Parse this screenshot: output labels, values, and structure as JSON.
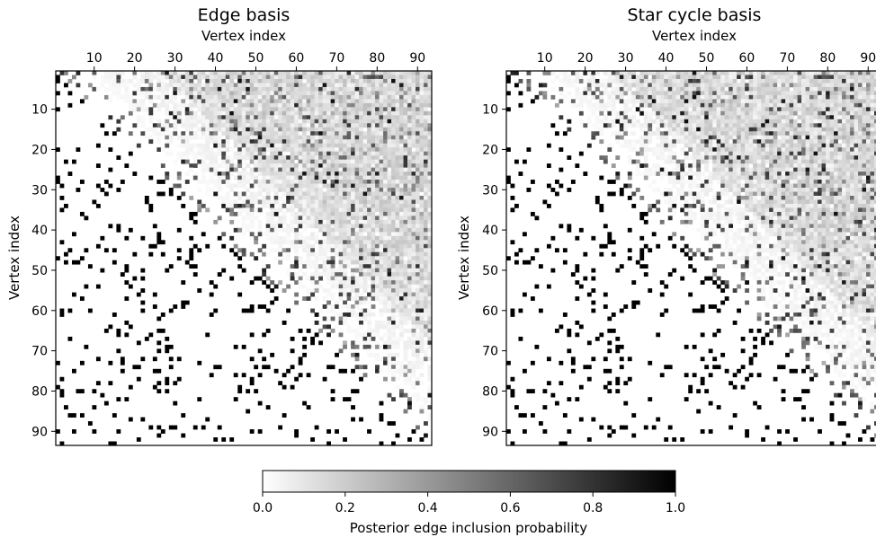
{
  "chart_data": [
    {
      "type": "heatmap",
      "title": "Edge basis",
      "xlabel": "Vertex index",
      "ylabel": "Vertex index",
      "n_vertices": 93,
      "xticks": [
        10,
        20,
        30,
        40,
        50,
        60,
        70,
        80,
        90
      ],
      "yticks": [
        10,
        20,
        30,
        40,
        50,
        60,
        70,
        80,
        90
      ],
      "upper_triangle": "posterior edge inclusion probability (grayscale 0-1), light near the diagonal, mostly 0.0-0.5 with scattered higher values",
      "lower_triangle": "true graph adjacency (binary 0/1)",
      "sample_edges": [
        [
          26,
          78
        ],
        [
          25,
          79
        ],
        [
          28,
          70
        ],
        [
          29,
          72
        ],
        [
          20,
          52
        ],
        [
          21,
          56
        ],
        [
          22,
          60
        ],
        [
          24,
          66
        ],
        [
          14,
          20
        ],
        [
          16,
          22
        ],
        [
          18,
          24
        ],
        [
          62,
          26
        ],
        [
          65,
          26
        ],
        [
          70,
          26
        ],
        [
          75,
          26
        ],
        [
          78,
          26
        ],
        [
          80,
          26
        ],
        [
          52,
          22
        ],
        [
          55,
          22
        ],
        [
          58,
          22
        ],
        [
          60,
          22
        ]
      ]
    },
    {
      "type": "heatmap",
      "title": "Star cycle basis",
      "xlabel": "Vertex index",
      "ylabel": "Vertex index",
      "n_vertices": 93,
      "xticks": [
        10,
        20,
        30,
        40,
        50,
        60,
        70,
        80,
        90
      ],
      "yticks": [
        10,
        20,
        30,
        40,
        50,
        60,
        70,
        80,
        90
      ],
      "upper_triangle": "posterior edge inclusion probability (grayscale 0-1)",
      "lower_triangle": "true graph adjacency (binary 0/1)"
    }
  ],
  "colorbar": {
    "label": "Posterior edge inclusion probability",
    "ticks": [
      "0.0",
      "0.2",
      "0.4",
      "0.6",
      "0.8",
      "1.0"
    ],
    "range": [
      0,
      1
    ],
    "colormap": "Greys",
    "color_low": "#ffffff",
    "color_high": "#000000"
  }
}
